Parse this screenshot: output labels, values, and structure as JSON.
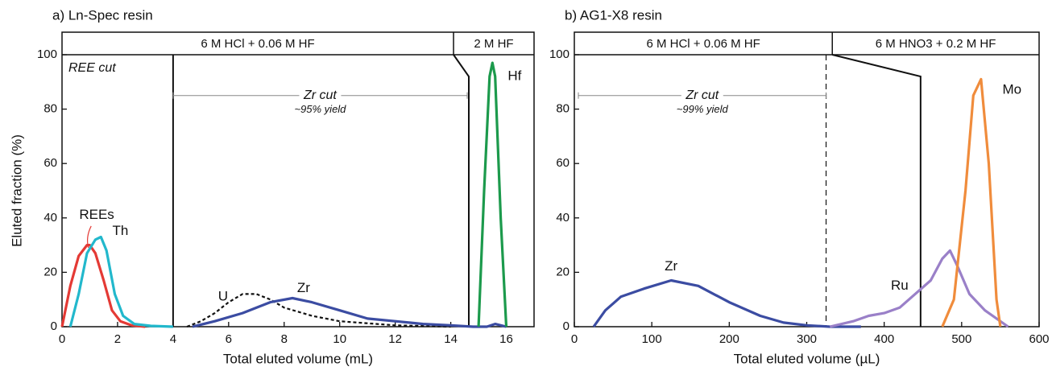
{
  "chart_data": [
    {
      "type": "line",
      "title": "a) Ln-Spec resin",
      "x_label": "Total eluted volume (mL)",
      "y_label": "Eluted fraction (%)",
      "xlim": [
        0,
        17
      ],
      "ylim": [
        0,
        100
      ],
      "xticks": [
        0,
        2,
        4,
        6,
        8,
        10,
        12,
        14,
        16
      ],
      "yticks": [
        0,
        20,
        40,
        60,
        80,
        100
      ],
      "regions": [
        {
          "label": "6 M HCl + 0.06 M HF",
          "from": 0,
          "to": 14.1
        },
        {
          "label": "2 M HF",
          "from": 14.1,
          "to": 17
        }
      ],
      "boundaries": [
        {
          "x": 4,
          "style": "solid"
        },
        {
          "x": 14.65,
          "x_top": 14.1,
          "y_kink": 92,
          "style": "solid"
        }
      ],
      "annotations": {
        "first_cut": "REE cut",
        "cut": "Zr cut",
        "yield": "~95% yield"
      },
      "series": [
        {
          "name": "REEs",
          "color": "#e43a35",
          "x": [
            0,
            0.3,
            0.6,
            0.9,
            1.0,
            1.2,
            1.5,
            1.8,
            2.1,
            2.5,
            3.0
          ],
          "values": [
            0,
            15,
            26,
            30,
            30,
            27,
            17,
            6,
            2,
            0.5,
            0
          ]
        },
        {
          "name": "Th",
          "color": "#22b8cc",
          "x": [
            0.3,
            0.6,
            0.9,
            1.2,
            1.4,
            1.6,
            1.9,
            2.2,
            2.6,
            3.2,
            4.0
          ],
          "values": [
            0,
            12,
            27,
            32,
            33,
            28,
            12,
            4,
            1,
            0.3,
            0
          ]
        },
        {
          "name": "U",
          "color": "#111111",
          "dash": true,
          "x": [
            4.5,
            5,
            5.5,
            6,
            6.5,
            7,
            7.5,
            8,
            9,
            10,
            12,
            14
          ],
          "values": [
            0,
            2,
            5,
            9,
            12,
            12,
            10,
            7,
            4,
            2,
            0.5,
            0
          ]
        },
        {
          "name": "Zr",
          "color": "#3b4ca2",
          "x": [
            4.7,
            5.5,
            6.5,
            7.5,
            8.3,
            9,
            10,
            11,
            12,
            13,
            14,
            14.8,
            15.3,
            15.6,
            16
          ],
          "values": [
            0,
            2,
            5,
            9,
            10.5,
            9,
            6,
            3,
            2,
            1,
            0.5,
            0,
            0,
            1,
            0
          ]
        },
        {
          "name": "Hf",
          "color": "#1c9a4c",
          "x": [
            15,
            15.2,
            15.4,
            15.5,
            15.6,
            15.8,
            16
          ],
          "values": [
            0,
            50,
            92,
            97,
            92,
            40,
            0
          ]
        }
      ]
    },
    {
      "type": "line",
      "title": "b) AG1-X8 resin",
      "x_label": "Total eluted volume (µL)",
      "xlim": [
        0,
        600
      ],
      "ylim": [
        0,
        100
      ],
      "xticks": [
        0,
        100,
        200,
        300,
        400,
        500,
        600
      ],
      "yticks": [
        0,
        20,
        40,
        60,
        80,
        100
      ],
      "regions": [
        {
          "label": "6 M HCl + 0.06 M HF",
          "from": 0,
          "to": 333
        },
        {
          "label": "6 M HNO3 + 0.2 M HF",
          "from": 333,
          "to": 600
        }
      ],
      "boundaries": [
        {
          "x": 325,
          "style": "dashed"
        },
        {
          "x": 447,
          "x_top": 333,
          "y_kink": 92,
          "style": "solid"
        }
      ],
      "annotations": {
        "cut": "Zr cut",
        "yield": "~99% yield"
      },
      "series": [
        {
          "name": "Zr",
          "color": "#3b4ca2",
          "x": [
            25,
            40,
            60,
            90,
            125,
            160,
            200,
            240,
            270,
            300,
            330,
            370
          ],
          "values": [
            0,
            6,
            11,
            14,
            17,
            15,
            9,
            4,
            1.5,
            0.5,
            0,
            0
          ]
        },
        {
          "name": "Ru",
          "color": "#9a80c8",
          "x": [
            330,
            360,
            380,
            400,
            420,
            440,
            460,
            475,
            485,
            495,
            510,
            530,
            560
          ],
          "values": [
            0,
            2,
            4,
            5,
            7,
            12,
            17,
            25,
            28,
            22,
            12,
            6,
            0
          ]
        },
        {
          "name": "Mo",
          "color": "#f08c3c",
          "x": [
            475,
            490,
            505,
            515,
            525,
            535,
            545,
            550
          ],
          "values": [
            0,
            10,
            50,
            85,
            91,
            60,
            10,
            0
          ]
        }
      ]
    }
  ]
}
